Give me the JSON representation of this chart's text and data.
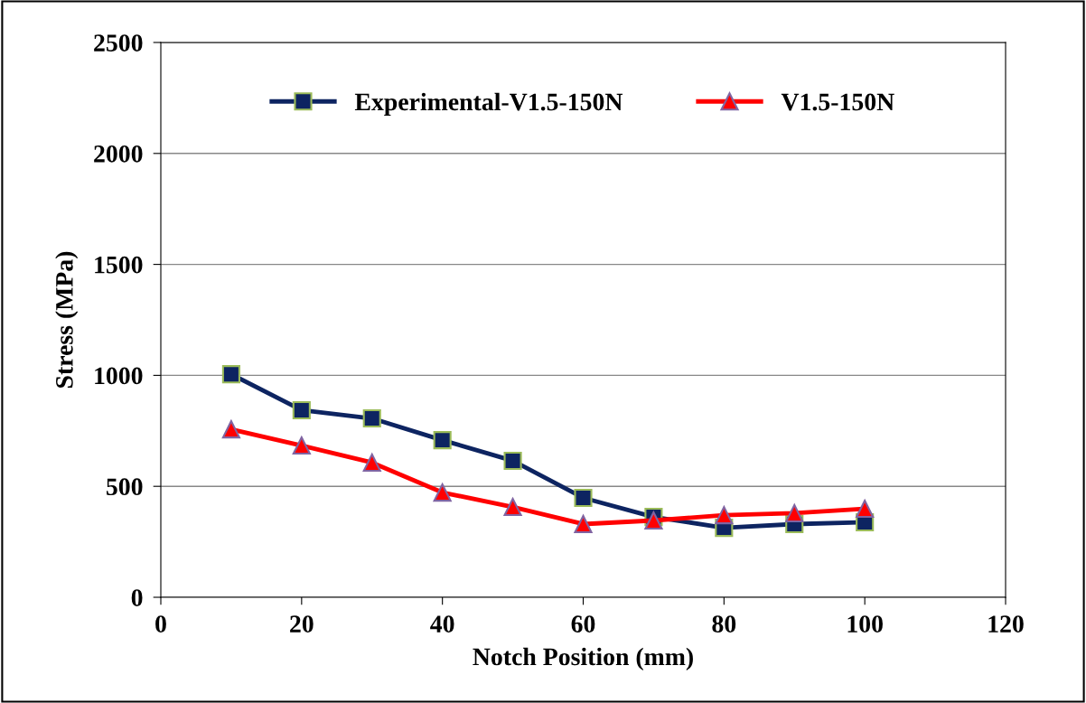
{
  "chart_data": {
    "type": "line",
    "xlabel": "Notch Position (mm)",
    "ylabel": "Stress (MPa)",
    "x": [
      10,
      20,
      30,
      40,
      50,
      60,
      70,
      80,
      90,
      100
    ],
    "series": [
      {
        "name": "Experimental-V1.5-150N",
        "color": "#0d2461",
        "marker": "square",
        "values": [
          1005,
          843,
          806,
          708,
          615,
          448,
          362,
          313,
          330,
          338
        ]
      },
      {
        "name": "V1.5-150N",
        "color": "#ff0000",
        "marker": "triangle",
        "values": [
          757,
          684,
          607,
          472,
          407,
          330,
          346,
          370,
          379,
          399
        ]
      }
    ],
    "xlim": [
      0,
      120
    ],
    "xticks": [
      0,
      20,
      40,
      60,
      80,
      100,
      120
    ],
    "ylim": [
      0,
      2500
    ],
    "yticks": [
      0,
      500,
      1000,
      1500,
      2000,
      2500
    ],
    "grid": "y",
    "legend": "top",
    "line_style": "solid"
  }
}
